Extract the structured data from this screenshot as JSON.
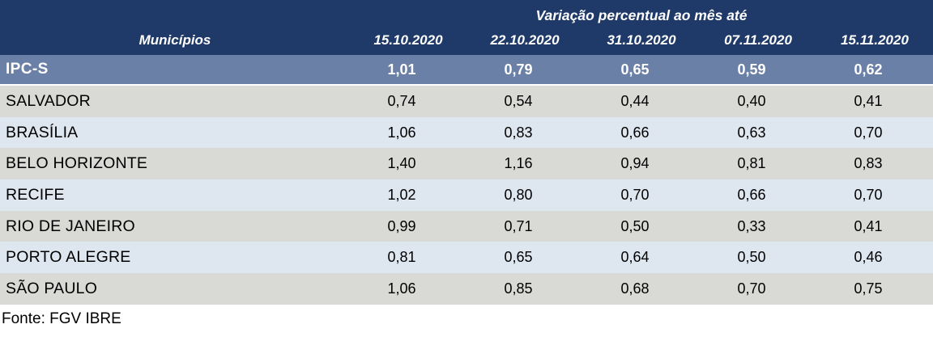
{
  "table": {
    "header": {
      "group_title": "Variação percentual ao mês até",
      "municipios_label": "Municípios",
      "date_columns": [
        "15.10.2020",
        "22.10.2020",
        "31.10.2020",
        "07.11.2020",
        "15.11.2020"
      ]
    },
    "summary_row": {
      "label": "IPC-S",
      "values": [
        "1,01",
        "0,79",
        "0,65",
        "0,59",
        "0,62"
      ]
    },
    "rows": [
      {
        "label": "SALVADOR",
        "values": [
          "0,74",
          "0,54",
          "0,44",
          "0,40",
          "0,41"
        ]
      },
      {
        "label": "BRASÍLIA",
        "values": [
          "1,06",
          "0,83",
          "0,66",
          "0,63",
          "0,70"
        ]
      },
      {
        "label": "BELO HORIZONTE",
        "values": [
          "1,40",
          "1,16",
          "0,94",
          "0,81",
          "0,83"
        ]
      },
      {
        "label": "RECIFE",
        "values": [
          "1,02",
          "0,80",
          "0,70",
          "0,66",
          "0,70"
        ]
      },
      {
        "label": "RIO DE JANEIRO",
        "values": [
          "0,99",
          "0,71",
          "0,50",
          "0,33",
          "0,41"
        ]
      },
      {
        "label": "PORTO ALEGRE",
        "values": [
          "0,81",
          "0,65",
          "0,64",
          "0,50",
          "0,46"
        ]
      },
      {
        "label": "SÃO PAULO",
        "values": [
          "1,06",
          "0,85",
          "0,68",
          "0,70",
          "0,75"
        ]
      }
    ],
    "footer": {
      "source": "Fonte: FGV IBRE"
    }
  },
  "colors": {
    "header_bg": "#1F3A68",
    "summary_row_bg": "#6B80A6",
    "row_gray_bg": "#D9D9D6",
    "row_blue_bg": "#DEE7F0",
    "header_text": "#FFFFFF",
    "body_text": "#000000"
  },
  "chart_data": {
    "type": "table",
    "title": "Variação percentual ao mês até",
    "row_header_label": "Municípios",
    "columns": [
      "15.10.2020",
      "22.10.2020",
      "31.10.2020",
      "07.11.2020",
      "15.11.2020"
    ],
    "rows": [
      [
        "IPC-S",
        1.01,
        0.79,
        0.65,
        0.59,
        0.62
      ],
      [
        "SALVADOR",
        0.74,
        0.54,
        0.44,
        0.4,
        0.41
      ],
      [
        "BRASÍLIA",
        1.06,
        0.83,
        0.66,
        0.63,
        0.7
      ],
      [
        "BELO HORIZONTE",
        1.4,
        1.16,
        0.94,
        0.81,
        0.83
      ],
      [
        "RECIFE",
        1.02,
        0.8,
        0.7,
        0.66,
        0.7
      ],
      [
        "RIO DE JANEIRO",
        0.99,
        0.71,
        0.5,
        0.33,
        0.41
      ],
      [
        "PORTO ALEGRE",
        0.81,
        0.65,
        0.64,
        0.5,
        0.46
      ],
      [
        "SÃO PAULO",
        1.06,
        0.85,
        0.68,
        0.7,
        0.75
      ]
    ],
    "notes": "Values are percent variation; decimal comma formatting (pt-BR)",
    "source": "Fonte: FGV IBRE"
  }
}
